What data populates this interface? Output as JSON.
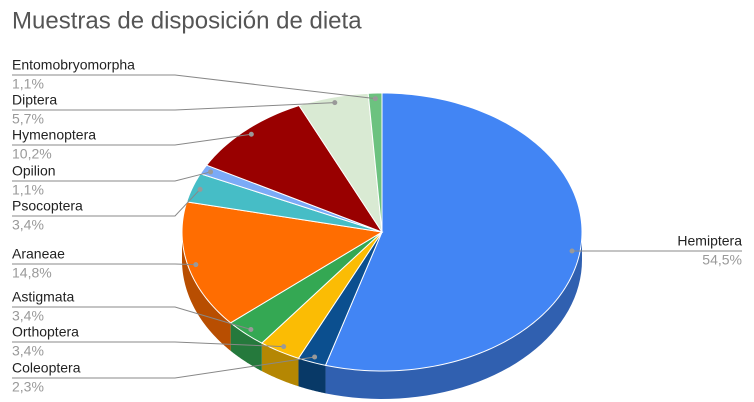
{
  "chart_data": {
    "type": "pie",
    "title": "Muestras de disposición de dieta",
    "categories": [
      "Hemiptera",
      "Coleoptera",
      "Orthoptera",
      "Astigmata",
      "Araneae",
      "Psocoptera",
      "Opilion",
      "Hymenoptera",
      "Diptera",
      "Entomobryomorpha"
    ],
    "values": [
      54.5,
      2.3,
      3.4,
      3.4,
      14.8,
      3.4,
      1.1,
      10.2,
      5.7,
      1.1
    ],
    "value_labels": [
      "54,5%",
      "2,3%",
      "3,4%",
      "3,4%",
      "14,8%",
      "3,4%",
      "1,1%",
      "10,2%",
      "5,7%",
      "1,1%"
    ],
    "colors": [
      "#4285f4",
      "#0b4f8f",
      "#fbbc04",
      "#34a853",
      "#ff6d01",
      "#46bdc6",
      "#7baaf7",
      "#990000",
      "#d9ead3",
      "#6cc27f"
    ],
    "three_d": true
  }
}
